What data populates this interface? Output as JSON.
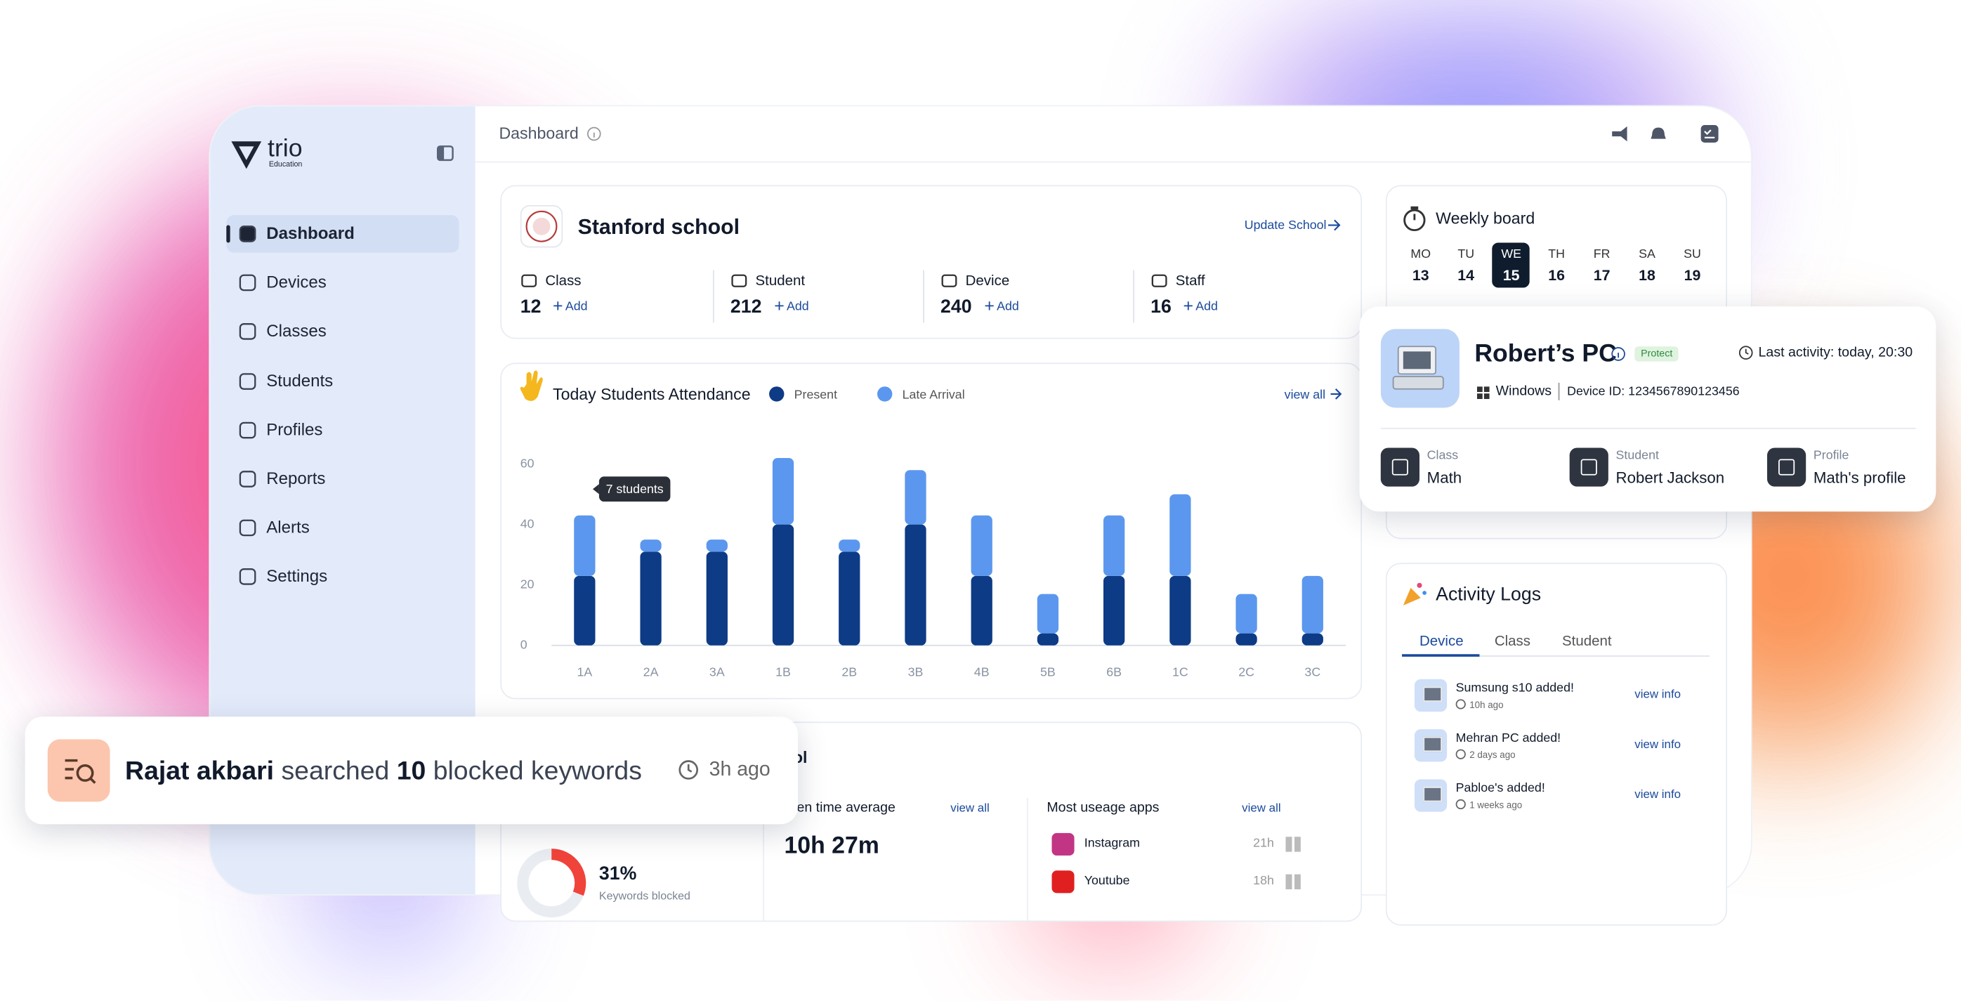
{
  "sidebar": {
    "brand": "trio",
    "brand_sub": "Education",
    "nav": [
      "Dashboard",
      "Devices",
      "Classes",
      "Students",
      "Profiles",
      "Reports",
      "Alerts",
      "Settings"
    ],
    "active": 0
  },
  "header": {
    "title": "Dashboard"
  },
  "school": {
    "name": "Stanford school",
    "action": "Update School",
    "stats": [
      {
        "label": "Class",
        "value": 12,
        "action": "Add"
      },
      {
        "label": "Student",
        "value": 212,
        "action": "Add"
      },
      {
        "label": "Device",
        "value": 240,
        "action": "Add"
      },
      {
        "label": "Staff",
        "value": 16,
        "action": "Add"
      }
    ]
  },
  "chart_data": {
    "type": "bar",
    "stacked": true,
    "title": "Today Students Attendance",
    "view_all": "view all",
    "annotation": "7 students",
    "categories": [
      "1A",
      "2A",
      "3A",
      "1B",
      "2B",
      "3B",
      "4B",
      "5B",
      "6B",
      "1C",
      "2C",
      "3C"
    ],
    "series": [
      {
        "name": "Present",
        "color": "#0d3b85",
        "values": [
          23,
          31,
          31,
          40,
          31,
          40,
          23,
          4,
          23,
          23,
          4,
          4
        ]
      },
      {
        "name": "Late Arrival",
        "color": "#5b97ee",
        "values": [
          20,
          4,
          4,
          22,
          4,
          18,
          20,
          13,
          20,
          27,
          13,
          19
        ]
      }
    ],
    "ylim": [
      0,
      60
    ],
    "yticks": [
      0,
      20,
      40,
      60
    ],
    "grid": false
  },
  "screen": {
    "title_fragment": "ol",
    "screen_time_label": "een time average",
    "screen_time_view_all": "view all",
    "screen_time": "10h 27m",
    "apps_title": "Most useage apps",
    "apps_view_all": "view all",
    "apps": [
      {
        "name": "Instagram",
        "time": "21h"
      },
      {
        "name": "Youtube",
        "time": "18h"
      }
    ],
    "keywords_blocked": 31,
    "keywords_blocked_label": "31%",
    "keywords_label": "Keywords blocked"
  },
  "weekly": {
    "title": "Weekly board",
    "days": [
      {
        "name": "MO",
        "date": 13
      },
      {
        "name": "TU",
        "date": 14
      },
      {
        "name": "WE",
        "date": 15
      },
      {
        "name": "TH",
        "date": 16
      },
      {
        "name": "FR",
        "date": 17
      },
      {
        "name": "SA",
        "date": 18
      },
      {
        "name": "SU",
        "date": 19
      }
    ],
    "selected": 2
  },
  "device": {
    "name": "Robert’s PC",
    "badge": "Protect",
    "last_activity": "Last activity: today, 20:30",
    "os": "Windows",
    "device_id": "Device ID: 1234567890123456",
    "fields": [
      {
        "label": "Class",
        "value": "Math"
      },
      {
        "label": "Student",
        "value": "Robert Jackson"
      },
      {
        "label": "Profile",
        "value": "Math's profile"
      }
    ]
  },
  "activity": {
    "title": "Activity Logs",
    "tabs": [
      "Device",
      "Class",
      "Student"
    ],
    "active_tab": 0,
    "items": [
      {
        "text": "Sumsung s10 added!",
        "time": "10h ago",
        "action": "view info"
      },
      {
        "text": "Mehran PC added!",
        "time": "2 days ago",
        "action": "view info"
      },
      {
        "text": "Pabloe's added!",
        "time": "1 weeks ago",
        "action": "view info"
      }
    ]
  },
  "toast": {
    "user": "Rajat akbari",
    "verb": "searched",
    "count": 10,
    "object": "blocked keywords",
    "time": "3h ago"
  }
}
